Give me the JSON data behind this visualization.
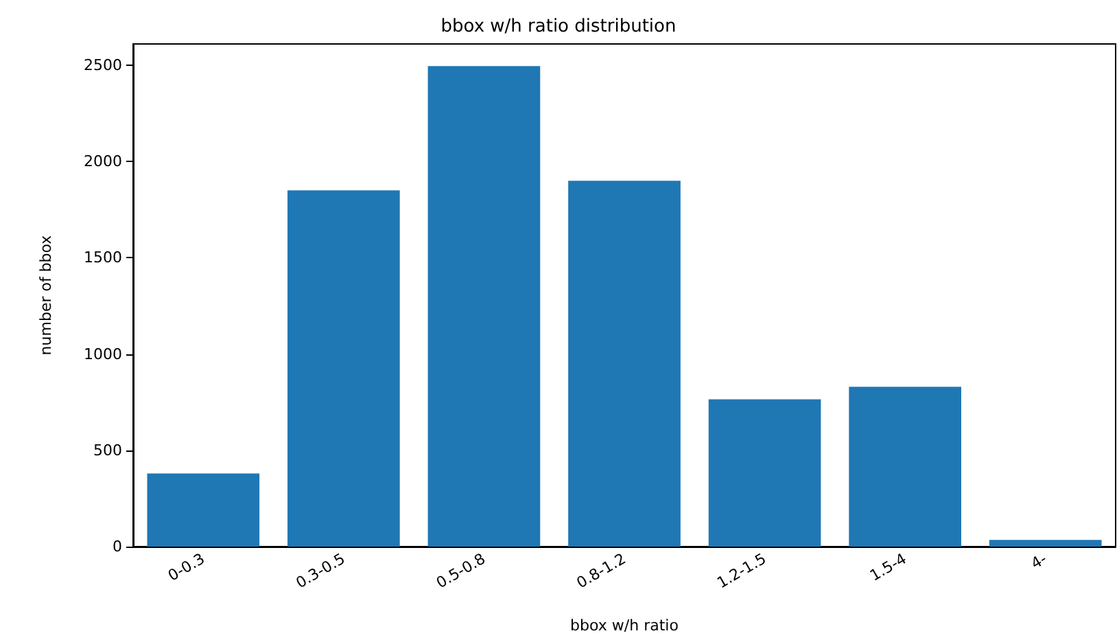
{
  "chart_data": {
    "type": "bar",
    "title": "bbox w/h ratio distribution",
    "xlabel": "bbox w/h ratio",
    "ylabel": "number of bbox",
    "categories": [
      "0-0.3",
      "0.3-0.5",
      "0.5-0.8",
      "0.8-1.2",
      "1.2-1.5",
      "1.5-4",
      "4-"
    ],
    "values": [
      380,
      1850,
      2495,
      1900,
      765,
      830,
      35
    ],
    "color": "#1f77b4",
    "ylim": [
      0,
      2610
    ],
    "yticks": [
      0,
      500,
      1000,
      1500,
      2000,
      2500
    ],
    "grid": false
  }
}
